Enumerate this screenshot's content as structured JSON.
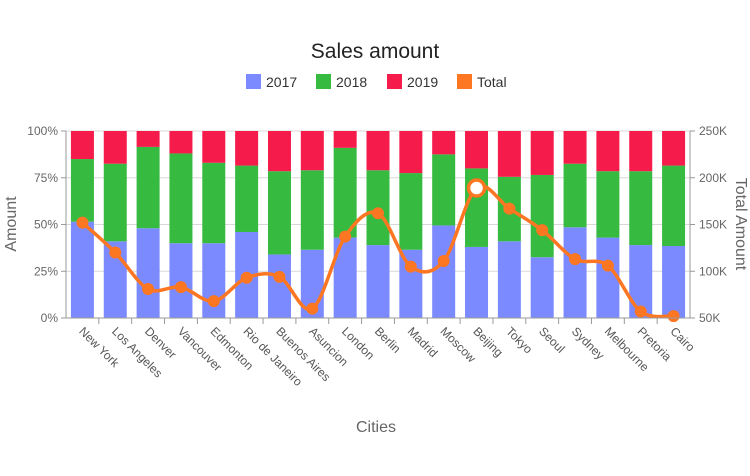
{
  "chart_data": {
    "type": "bar",
    "stacking": "percent",
    "title": "Sales amount",
    "xlabel": "Cities",
    "ylabel": "Amount",
    "y2label": "Total Amount",
    "ylim": [
      0,
      100
    ],
    "y2lim": [
      50000,
      250000
    ],
    "yticks": [
      "0%",
      "25%",
      "50%",
      "75%",
      "100%"
    ],
    "y2ticks": [
      "50K",
      "100K",
      "150K",
      "200K",
      "250K"
    ],
    "grid": true,
    "legend_position": "top",
    "categories": [
      "New York",
      "Los Angeles",
      "Denver",
      "Vancouver",
      "Edmonton",
      "Rio de Janeiro",
      "Buenos Aires",
      "Asuncion",
      "London",
      "Berlin",
      "Madrid",
      "Moscow",
      "Beijing",
      "Tokyo",
      "Seoul",
      "Sydney",
      "Melbourne",
      "Pretoria",
      "Cairo"
    ],
    "series": [
      {
        "name": "2017",
        "type": "bar",
        "color": "#7b8bff",
        "values": [
          51.5,
          41,
          48,
          40,
          40,
          46,
          34,
          36.5,
          43,
          39,
          36.5,
          49.5,
          38,
          41,
          32.5,
          48.5,
          43,
          39,
          38.5
        ]
      },
      {
        "name": "2018",
        "type": "bar",
        "color": "#36bb40",
        "values": [
          33.5,
          41.5,
          43.5,
          48,
          43,
          35.5,
          44.5,
          42.5,
          48,
          40,
          41,
          38,
          42,
          34.5,
          44,
          34,
          35.5,
          39.5,
          43
        ]
      },
      {
        "name": "2019",
        "type": "bar",
        "color": "#f51b4b",
        "values": [
          15,
          17.5,
          8.5,
          12,
          17,
          18.5,
          21.5,
          21,
          9,
          21,
          22.5,
          12.5,
          20,
          24.5,
          23.5,
          17.5,
          21.5,
          21.5,
          18.5
        ]
      },
      {
        "name": "Total",
        "type": "spline",
        "axis": "right",
        "color": "#fd7622",
        "values": [
          152000,
          120000,
          81000,
          83000,
          68000,
          93000,
          94000,
          60000,
          137000,
          162000,
          105000,
          111000,
          189000,
          167000,
          144000,
          113000,
          106000,
          57000,
          52000
        ],
        "highlighted_category": "Beijing"
      }
    ]
  }
}
